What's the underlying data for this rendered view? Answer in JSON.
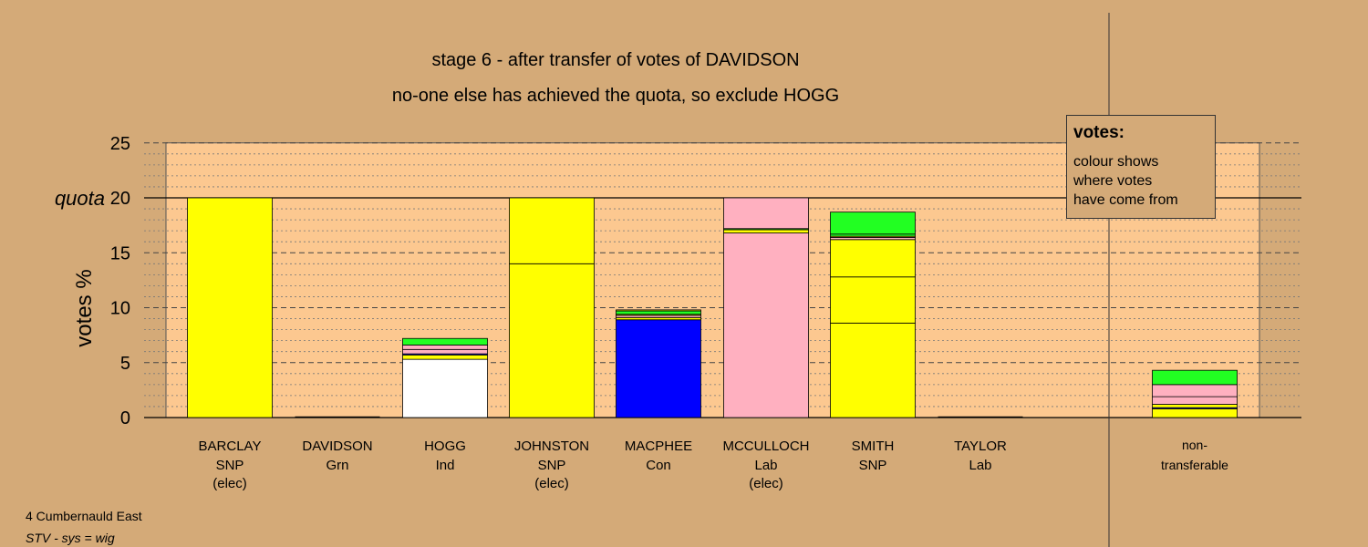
{
  "chart_data": {
    "type": "bar",
    "stacked": true,
    "title": "stage 6 - after transfer of votes of DAVIDSON",
    "subtitle": "no-one else has achieved the quota, so exclude HOGG",
    "ylabel": "votes %",
    "ylim": [
      0,
      25
    ],
    "yticks": [
      "0",
      "5",
      "10",
      "15",
      "quota 20",
      "25"
    ],
    "quota": 20,
    "quota_label": "quota",
    "grid": "dashed major, dotted minor",
    "colors": {
      "SNP": "#ffff00",
      "Ind": "#ffffff",
      "Con": "#0000ff",
      "Lab": "#ffb0c0",
      "Grn": "#22ff22"
    },
    "bars": [
      {
        "name": "BARCLAY",
        "party": "SNP",
        "note": "(elec)",
        "total": 20.0,
        "segments": [
          {
            "source": "SNP",
            "value": 20.0
          }
        ]
      },
      {
        "name": "DAVIDSON",
        "party": "Grn",
        "note": "",
        "total": 0,
        "segments": []
      },
      {
        "name": "HOGG",
        "party": "Ind",
        "note": "",
        "total": 7.2,
        "segments": [
          {
            "source": "Ind",
            "value": 5.3
          },
          {
            "source": "SNP",
            "value": 0.4
          },
          {
            "source": "Con",
            "value": 0.1
          },
          {
            "source": "Lab",
            "value": 0.4
          },
          {
            "source": "Lab",
            "value": 0.4
          },
          {
            "source": "Grn",
            "value": 0.6
          }
        ]
      },
      {
        "name": "JOHNSTON",
        "party": "SNP",
        "note": "(elec)",
        "total": 20.0,
        "segments": [
          {
            "source": "SNP",
            "value": 14.0
          },
          {
            "source": "SNP",
            "value": 6.0
          }
        ]
      },
      {
        "name": "MACPHEE",
        "party": "Con",
        "note": "",
        "total": 9.8,
        "segments": [
          {
            "source": "Con",
            "value": 8.9
          },
          {
            "source": "SNP",
            "value": 0.2
          },
          {
            "source": "Lab",
            "value": 0.2
          },
          {
            "source": "SNP",
            "value": 0.1
          },
          {
            "source": "Grn",
            "value": 0.3
          },
          {
            "source": "SNP",
            "value": 0.1
          }
        ]
      },
      {
        "name": "MCCULLOCH",
        "party": "Lab",
        "note": "(elec)",
        "total": 20.0,
        "segments": [
          {
            "source": "Lab",
            "value": 16.8
          },
          {
            "source": "SNP",
            "value": 0.3
          },
          {
            "source": "Grn",
            "value": 0.1
          },
          {
            "source": "Lab",
            "value": 2.8
          }
        ]
      },
      {
        "name": "SMITH",
        "party": "SNP",
        "note": "",
        "total": 18.7,
        "segments": [
          {
            "source": "SNP",
            "value": 8.6
          },
          {
            "source": "SNP",
            "value": 4.2
          },
          {
            "source": "SNP",
            "value": 3.4
          },
          {
            "source": "Lab",
            "value": 0.2
          },
          {
            "source": "SNP",
            "value": 0.1
          },
          {
            "source": "Grn",
            "value": 0.2
          },
          {
            "source": "Grn",
            "value": 2.0
          }
        ]
      },
      {
        "name": "TAYLOR",
        "party": "Lab",
        "note": "",
        "total": 0,
        "segments": []
      }
    ],
    "nontransferable": {
      "label1": "non-",
      "label2": "transferable",
      "total": 4.3,
      "segments": [
        {
          "source": "SNP",
          "value": 0.8
        },
        {
          "source": "Con",
          "value": 0.1
        },
        {
          "source": "SNP",
          "value": 0.3
        },
        {
          "source": "Lab",
          "value": 0.7
        },
        {
          "source": "Lab",
          "value": 1.1
        },
        {
          "source": "Grn",
          "value": 1.3
        }
      ]
    }
  },
  "legend": {
    "title": "votes:",
    "lines": [
      "colour shows",
      "where votes",
      "have come from"
    ]
  },
  "footer": {
    "ward": "4 Cumbernauld East",
    "system": "STV - sys = wig"
  }
}
